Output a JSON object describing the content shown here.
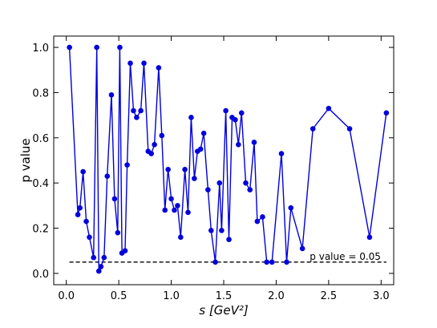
{
  "chart_data": {
    "type": "line",
    "title": "",
    "xlabel": "s  [GeV²]",
    "ylabel": "p value",
    "xlim": [
      -0.12,
      3.12
    ],
    "ylim": [
      -0.05,
      1.05
    ],
    "x_ticks": [
      0.0,
      0.5,
      1.0,
      1.5,
      2.0,
      2.5,
      3.0
    ],
    "x_tick_labels": [
      "0.0",
      "0.5",
      "1.0",
      "1.5",
      "2.0",
      "2.5",
      "3.0"
    ],
    "y_ticks": [
      0.0,
      0.2,
      0.4,
      0.6,
      0.8,
      1.0
    ],
    "y_tick_labels": [
      "0.0",
      "0.2",
      "0.4",
      "0.6",
      "0.8",
      "1.0"
    ],
    "grid": false,
    "colors": {
      "series": "#0000dd",
      "threshold": "#000000"
    },
    "series": [
      {
        "x": [
          0.03,
          0.11,
          0.13,
          0.16,
          0.19,
          0.22,
          0.26,
          0.29,
          0.31,
          0.33,
          0.36,
          0.39,
          0.43,
          0.46,
          0.49,
          0.51,
          0.53,
          0.56,
          0.58,
          0.61,
          0.64,
          0.67,
          0.71,
          0.74,
          0.78,
          0.81,
          0.84,
          0.88,
          0.91,
          0.94,
          0.97,
          1.0,
          1.03,
          1.06,
          1.09,
          1.13,
          1.16,
          1.19,
          1.22,
          1.25,
          1.28,
          1.31,
          1.35,
          1.38,
          1.42,
          1.46,
          1.48,
          1.52,
          1.55,
          1.58,
          1.61,
          1.64,
          1.67,
          1.71,
          1.75,
          1.79,
          1.82,
          1.87,
          1.91,
          1.96,
          2.05,
          2.1,
          2.14,
          2.25,
          2.35,
          2.5,
          2.7,
          2.89,
          3.05
        ],
        "y": [
          1.0,
          0.26,
          0.29,
          0.45,
          0.23,
          0.16,
          0.07,
          1.0,
          0.01,
          0.03,
          0.07,
          0.43,
          0.79,
          0.33,
          0.18,
          1.0,
          0.09,
          0.1,
          0.48,
          0.93,
          0.72,
          0.69,
          0.72,
          0.93,
          0.54,
          0.53,
          0.57,
          0.91,
          0.61,
          0.28,
          0.46,
          0.33,
          0.28,
          0.3,
          0.16,
          0.46,
          0.27,
          0.69,
          0.42,
          0.54,
          0.55,
          0.62,
          0.37,
          0.19,
          0.05,
          0.4,
          0.19,
          0.72,
          0.15,
          0.69,
          0.68,
          0.57,
          0.71,
          0.4,
          0.37,
          0.58,
          0.23,
          0.25,
          0.05,
          0.05,
          0.53,
          0.05,
          0.29,
          0.11,
          0.64,
          0.73,
          0.64,
          0.16,
          0.71
        ]
      }
    ],
    "threshold": {
      "y": 0.05,
      "label": "p value = 0.05",
      "style": "dashed"
    }
  }
}
